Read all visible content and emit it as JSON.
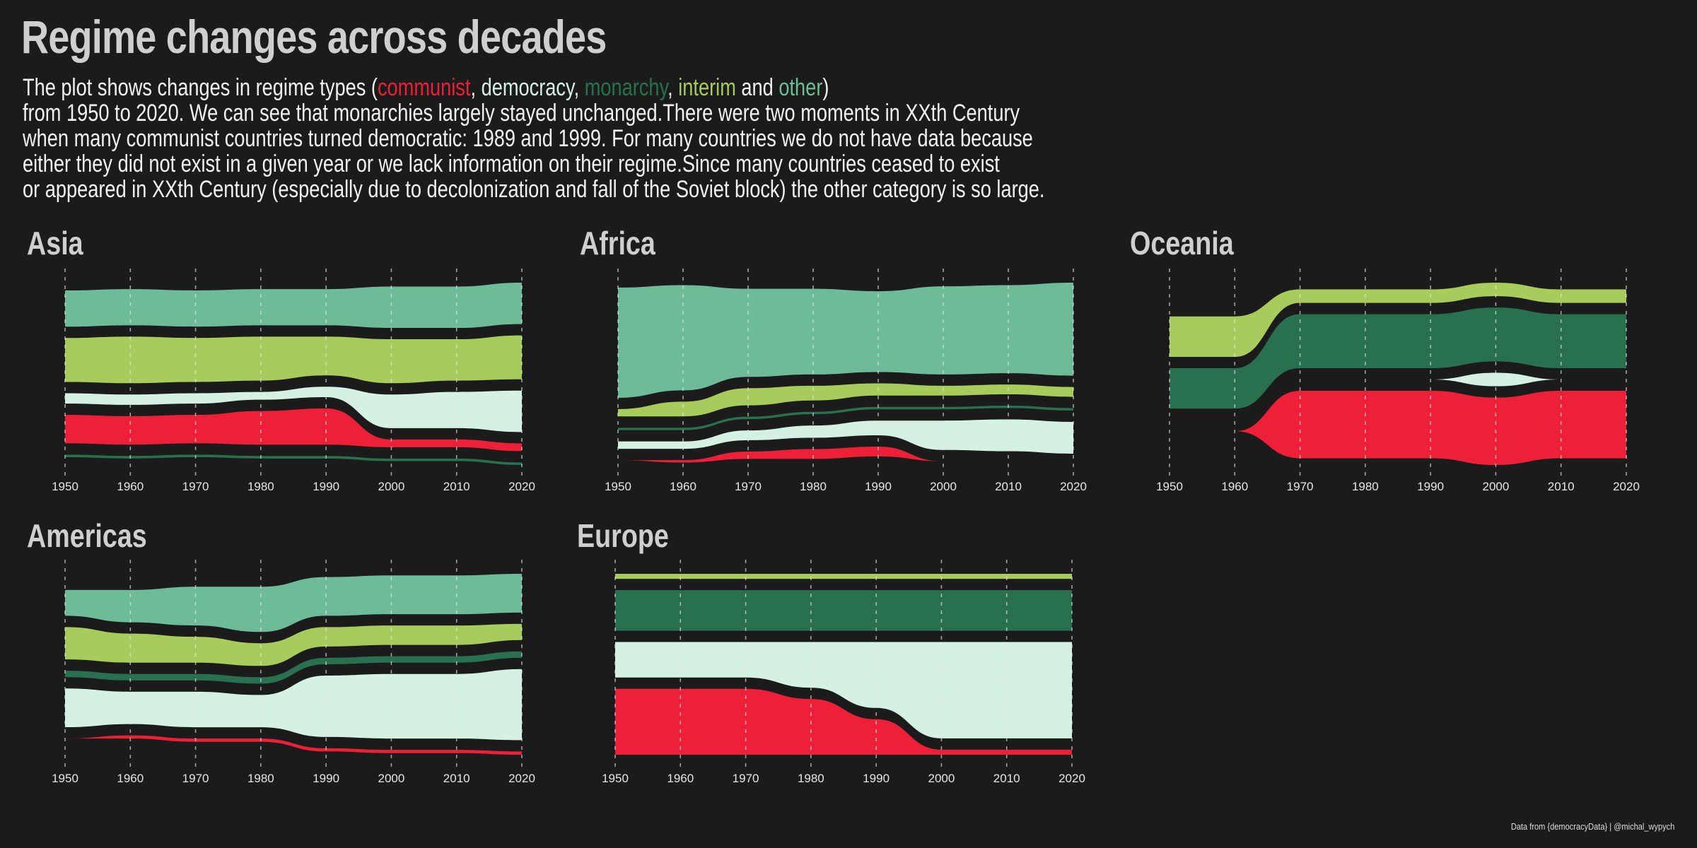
{
  "header": {
    "title": "Regime changes across decades",
    "subtitle": {
      "line1_pre": "The plot shows changes in regime types (",
      "communist": "communist",
      "sep1": ", ",
      "democracy": "democracy",
      "sep2": ", ",
      "monarchy": "monarchy",
      "sep3": ", ",
      "interim": "interim",
      "and_word": " and ",
      "other": "other",
      "close_paren": ")",
      "line2": "from 1950 to 2020. We can see that monarchies largely stayed unchanged.There were two moments in XXth Century",
      "line3": "when many communist countries turned democratic: 1989 and 1999. For many countries we do not have data because",
      "line4": "either they did not exist in a given year or we lack information on their regime.Since many countries ceased to exist",
      "line5": "or appeared in XXth Century (especially due to decolonization and fall of the Soviet block) the other category is so large."
    }
  },
  "colors": {
    "background": "#1b1b1b",
    "communist": "#ee2038",
    "democracy": "#d4f1e3",
    "monarchy": "#287050",
    "interim": "#a8cc5b",
    "other": "#6ebb99",
    "tick": "#e6e6e6"
  },
  "credit": "Data from {democracyData} | @michal_wypych",
  "chart_data": [
    {
      "type": "area",
      "title": "Asia",
      "x": [
        1950,
        1960,
        1970,
        1980,
        1990,
        2000,
        2010,
        2020
      ],
      "xticks": [
        "1950",
        "1960",
        "1970",
        "1980",
        "1990",
        "2000",
        "2010",
        "2020"
      ],
      "series": [
        {
          "name": "other",
          "values": [
            14,
            14,
            14,
            14,
            14,
            16,
            16,
            16
          ]
        },
        {
          "name": "interim",
          "values": [
            17,
            18,
            17,
            17,
            15,
            17,
            16,
            17
          ]
        },
        {
          "name": "democracy",
          "values": [
            4,
            4,
            4,
            3,
            4,
            13,
            14,
            16
          ]
        },
        {
          "name": "communist",
          "values": [
            11,
            11,
            11,
            13,
            14,
            3,
            3,
            3
          ]
        },
        {
          "name": "monarchy",
          "values": [
            1,
            1,
            1,
            1,
            1,
            1,
            1,
            1
          ]
        }
      ]
    },
    {
      "type": "area",
      "title": "Africa",
      "x": [
        1950,
        1960,
        1970,
        1980,
        1990,
        2000,
        2010,
        2020
      ],
      "xticks": [
        "1950",
        "1960",
        "1970",
        "1980",
        "1990",
        "2000",
        "2010",
        "2020"
      ],
      "series": [
        {
          "name": "other",
          "values": [
            45,
            43,
            36,
            35,
            33,
            36,
            36,
            38
          ]
        },
        {
          "name": "interim",
          "values": [
            3,
            6,
            7,
            6,
            5,
            4,
            4,
            4
          ]
        },
        {
          "name": "monarchy",
          "values": [
            1,
            1,
            1,
            1,
            1,
            1,
            1,
            1
          ]
        },
        {
          "name": "democracy",
          "values": [
            3,
            3,
            4,
            5,
            6,
            12,
            13,
            13
          ]
        },
        {
          "name": "communist",
          "values": [
            0,
            1,
            3,
            4,
            4,
            0,
            0,
            0
          ]
        }
      ]
    },
    {
      "type": "area",
      "title": "Oceania",
      "x": [
        1950,
        1960,
        1970,
        1980,
        1990,
        2000,
        2010,
        2020
      ],
      "xticks": [
        "1950",
        "1960",
        "1970",
        "1980",
        "1990",
        "2000",
        "2010",
        "2020"
      ],
      "series": [
        {
          "name": "interim",
          "values": [
            3,
            3,
            1,
            1,
            1,
            1,
            1,
            1
          ]
        },
        {
          "name": "monarchy",
          "values": [
            3,
            3,
            4,
            4,
            4,
            4,
            4,
            4
          ]
        },
        {
          "name": "democracy",
          "values": [
            0,
            0,
            0,
            0,
            0,
            1,
            0,
            0
          ]
        },
        {
          "name": "communist",
          "values": [
            0,
            0,
            5,
            5,
            5,
            5,
            5,
            5
          ]
        }
      ]
    },
    {
      "type": "area",
      "title": "Americas",
      "x": [
        1950,
        1960,
        1970,
        1980,
        1990,
        2000,
        2010,
        2020
      ],
      "xticks": [
        "1950",
        "1960",
        "1970",
        "1980",
        "1990",
        "2000",
        "2010",
        "2020"
      ],
      "series": [
        {
          "name": "other",
          "values": [
            8,
            10,
            12,
            14,
            12,
            12,
            12,
            12
          ]
        },
        {
          "name": "interim",
          "values": [
            10,
            9,
            8,
            7,
            6,
            6,
            6,
            5
          ]
        },
        {
          "name": "monarchy",
          "values": [
            2,
            2,
            2,
            2,
            2,
            2,
            2,
            2
          ]
        },
        {
          "name": "democracy",
          "values": [
            12,
            10,
            11,
            10,
            19,
            20,
            20,
            22
          ]
        },
        {
          "name": "communist",
          "values": [
            0,
            1,
            1,
            1,
            1,
            1,
            1,
            1
          ]
        }
      ]
    },
    {
      "type": "area",
      "title": "Europe",
      "x": [
        1950,
        1960,
        1970,
        1980,
        1990,
        2000,
        2010,
        2020
      ],
      "xticks": [
        "1950",
        "1960",
        "1970",
        "1980",
        "1990",
        "2000",
        "2010",
        "2020"
      ],
      "series": [
        {
          "name": "interim",
          "values": [
            1,
            1,
            1,
            1,
            1,
            1,
            1,
            1
          ]
        },
        {
          "name": "monarchy",
          "values": [
            8,
            8,
            8,
            8,
            8,
            8,
            8,
            8
          ]
        },
        {
          "name": "democracy",
          "values": [
            7,
            7,
            7,
            9,
            13,
            19,
            19,
            19
          ]
        },
        {
          "name": "communist",
          "values": [
            13,
            13,
            13,
            11,
            7,
            1,
            1,
            1
          ]
        }
      ]
    }
  ]
}
